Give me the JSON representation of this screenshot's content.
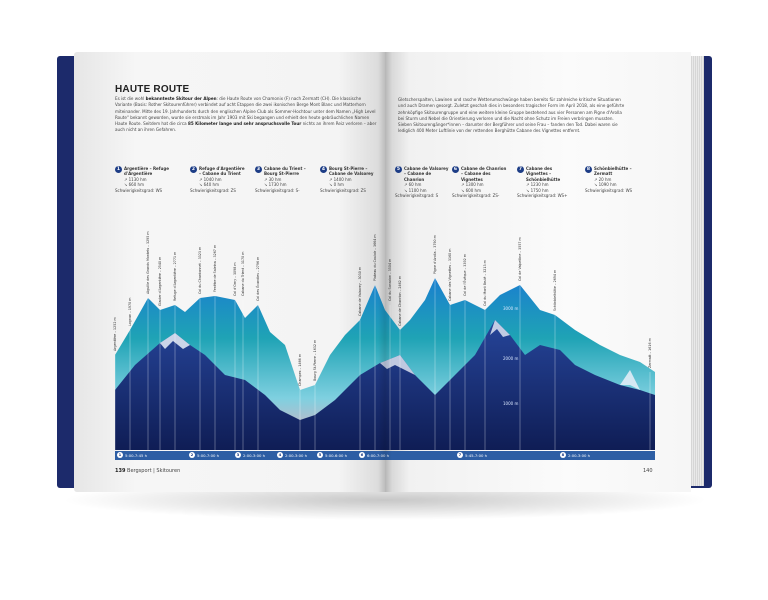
{
  "colors": {
    "cover": "#1c2a6b",
    "accent": "#1d3d86",
    "bar": "#2d5ea4",
    "sky_teal": "#1fa3b5",
    "sky_pink": "#f1a7b5"
  },
  "left_page": {
    "title": "HAUTE ROUTE",
    "intro": [
      {
        "text": "Es ist die wohl ",
        "bold": false
      },
      {
        "text": "bekannteste Skitour der Alpen",
        "bold": true
      },
      {
        "text": ": die Haute Route von Chamonix (F) nach Zermatt (CH). Die klassische Variante (Basis: Rother Skitourenführer) verbindet auf acht Etappen die zwei ikonischen Berge Mont Blanc und Matterhorn miteinander. Mitte des 19. Jahrhunderts durch den englischen Alpine Club als Sommer-Hochtour unter dem Namen „High Level Route“ bekannt geworden, wurde sie erstmals im Jahr 1903 mit Ski begangen und erhielt den heute gebräuchlichen Namen Haute Route. Seitdem hat die circa ",
        "bold": false
      },
      {
        "text": "85 Kilometer lange und sehr anspruchsvolle Tour",
        "bold": true
      },
      {
        "text": " nichts an ihrem Reiz verloren – aber auch nicht an ihren Gefahren.",
        "bold": false
      }
    ],
    "footer_page": "139",
    "footer_section": "Bergsport | Skitouren"
  },
  "right_page": {
    "intro": "Gletscherspalten, Lawinen und rasche Wetterumschwünge haben bereits für zahlreiche kritische Situationen und auch Dramen gesorgt. Zuletzt geschah dies in besonders tragischer Form im April 2018, als eine geführte zehnköpfige Skitourengruppe und eine weitere kleine Gruppe bestehend aus vier Personen am Pigne d'Arolla bei Sturm und Nebel die Orientierung verloren und die Nacht ohne Schutz im Freien verbringen mussten. Sieben Skitourengänger*innen – darunter der Bergführer und seine Frau – fanden den Tod. Dabei waren sie lediglich 400 Meter Luftlinie von der rettenden Berghütte Cabane des Vignettes entfernt.",
    "footer_page": "140"
  },
  "stages": [
    {
      "num": "1",
      "name": "Argentière – Refuge d'Argentière",
      "up": "↗ 1130 hm",
      "down": "↘ 660 hm",
      "grade": "Schwierigkeitsgrad: WS",
      "time": "5:00-7:45 h"
    },
    {
      "num": "2",
      "name": "Refuge d'Argentière – Cabane du Trient",
      "up": "↗ 1040 hm",
      "down": "↘ 640 hm",
      "grade": "Schwierigkeitsgrad: ZS",
      "time": "5:00-7:00 h"
    },
    {
      "num": "3",
      "name": "Cabane du Trient – Bourg St-Pierre",
      "up": "↗ 30 hm",
      "down": "↘ 1730 hm",
      "grade": "Schwierigkeitsgrad: S-",
      "time": "2:00-3:00 h"
    },
    {
      "num": "4",
      "name": "Bourg St-Pierre – Cabane de Valsorey",
      "up": "↗ 1400 hm",
      "down": "↘ 0 hm",
      "grade": "Schwierigkeitsgrad: ZS",
      "time": "2:00-3:00 h"
    },
    {
      "num": "5",
      "name": "Cabane de Valsorey – Cabane de Chanrion",
      "up": "↗ 60 hm",
      "down": "↘ 1100 hm",
      "grade": "Schwierigkeitsgrad: S",
      "time": "5:00-6:00 h"
    },
    {
      "num": "6",
      "name": "Cabane de Chanrion – Cabane des Vignettes",
      "up": "↗ 1300 hm",
      "down": "↘ 600 hm",
      "grade": "Schwierigkeitsgrad: ZS-",
      "time": "6:00-7:00 h"
    },
    {
      "num": "7",
      "name": "Cabane des Vignettes – Schönbielhütte",
      "up": "↗ 1230 hm",
      "down": "↘ 1750 hm",
      "grade": "Schwierigkeitsgrad: WS+",
      "time": "5:45-7:00 h"
    },
    {
      "num": "8",
      "name": "Schönbielhütte – Zermatt",
      "up": "↗ 20 hm",
      "down": "↘ 1090 hm",
      "grade": "Schwierigkeitsgrad: WS",
      "time": "2:00-3:00 h"
    }
  ],
  "elevation_lines": [
    "3000 m",
    "2000 m",
    "1000 m"
  ],
  "waypoints": [
    "Argentière – 1252 m",
    "Lognan – 1970 m",
    "Aiguille des Grands Montets – 3295 m",
    "Glacier d'Argentière – 2540 m",
    "Refuge d'Argentière – 2771 m",
    "Col du Chardonnet – 3323 m",
    "Fenêtre de Saleina – 3267 m",
    "Col d'Orny – 3098 m",
    "Cabane du Trient – 3170 m",
    "Col des Écandies – 2796 m",
    "Champex – 1466 m",
    "Bourg St-Pierre – 1632 m",
    "Cabane de Valsorey – 3030 m",
    "Plateau du Couloir – 3664 m",
    "Col du Sonadon – 3504 m",
    "Cabane de Chanrion – 2462 m",
    "Pigne d'Arolla – 3790 m",
    "Cabane des Vignettes – 3160 m",
    "Col de l'Évêque – 3392 m",
    "Col du Mont Brulé – 3213 m",
    "Col de Valpelline – 3557 m",
    "Schönbielhütte – 2694 m",
    "Zermatt – 1616 m"
  ]
}
